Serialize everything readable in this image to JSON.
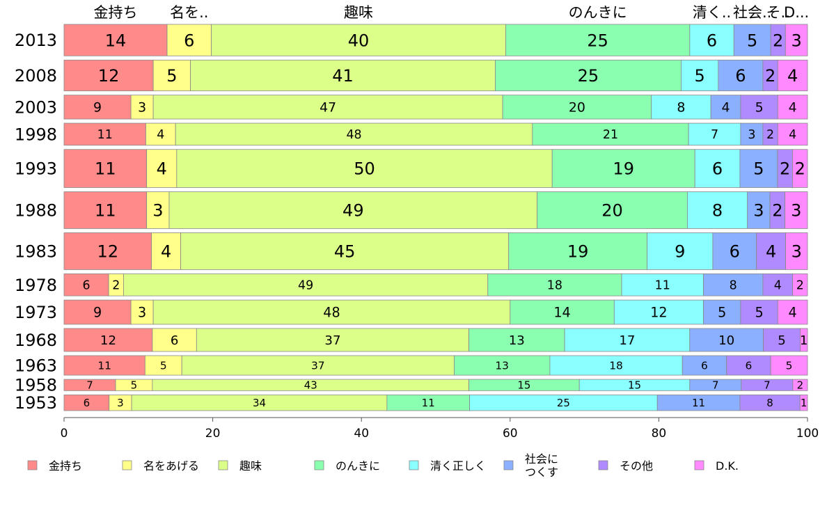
{
  "chart_data": {
    "type": "bar",
    "orientation": "horizontal",
    "stacked": true,
    "title": "",
    "xlabel": "",
    "ylabel": "",
    "xlim": [
      0,
      100
    ],
    "x_ticks": [
      "0",
      "20",
      "40",
      "60",
      "80",
      "100"
    ],
    "grid": false,
    "legend_position": "bottom",
    "categories": [
      "2013",
      "2008",
      "2003",
      "1998",
      "1993",
      "1988",
      "1983",
      "1978",
      "1973",
      "1968",
      "1963",
      "1958",
      "1953"
    ],
    "column_widths": [
      1,
      0.98,
      0.76,
      0.7,
      1.21,
      1.17,
      1.17,
      0.7,
      0.77,
      0.73,
      0.62,
      0.36,
      0.5
    ],
    "top_labels": [
      "金持ち",
      "名を..",
      "趣味",
      "のんきに",
      "清く..",
      "社会..",
      "そ..",
      "D..."
    ],
    "series": [
      {
        "name": "金持ち",
        "color": "#ff8a8a",
        "values": [
          14,
          12,
          9,
          11,
          11,
          11,
          12,
          6,
          9,
          12,
          11,
          7,
          6
        ]
      },
      {
        "name": "名をあげる",
        "color": "#ffff8a",
        "values": [
          6,
          5,
          3,
          4,
          4,
          3,
          4,
          2,
          3,
          6,
          5,
          5,
          3
        ]
      },
      {
        "name": "趣味",
        "color": "#dcff8a",
        "values": [
          40,
          41,
          47,
          48,
          50,
          49,
          45,
          49,
          48,
          37,
          37,
          43,
          34
        ]
      },
      {
        "name": "のんきに",
        "color": "#8affb0",
        "values": [
          25,
          25,
          20,
          21,
          19,
          20,
          19,
          18,
          14,
          13,
          13,
          15,
          11
        ]
      },
      {
        "name": "清く正しく",
        "color": "#8affff",
        "values": [
          6,
          5,
          8,
          7,
          6,
          8,
          9,
          11,
          12,
          17,
          18,
          15,
          25
        ]
      },
      {
        "name": "社会に\nつくす",
        "color": "#8ab0ff",
        "values": [
          5,
          6,
          4,
          3,
          5,
          3,
          6,
          8,
          5,
          10,
          6,
          7,
          11
        ]
      },
      {
        "name": "その他",
        "color": "#b08aff",
        "values": [
          2,
          2,
          5,
          2,
          2,
          2,
          4,
          4,
          5,
          5,
          6,
          7,
          8
        ]
      },
      {
        "name": "D.K.",
        "color": "#ff8aff",
        "values": [
          3,
          4,
          4,
          4,
          2,
          3,
          3,
          2,
          4,
          1,
          5,
          2,
          1
        ]
      }
    ]
  }
}
